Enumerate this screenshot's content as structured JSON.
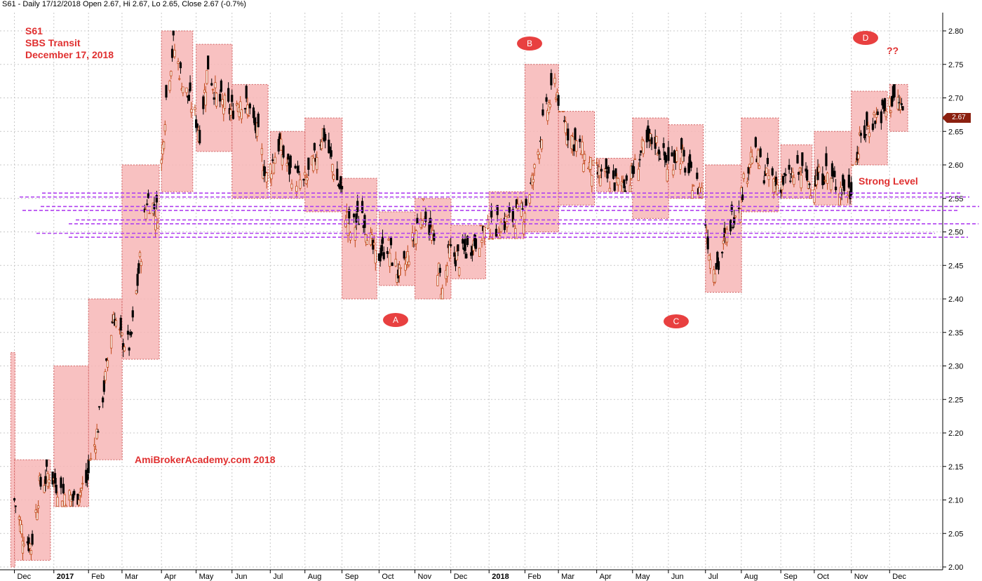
{
  "header": "S61 - Daily 17/12/2018 Open 2.67, Hi 2.67, Lo 2.65, Close 2.67 (-0.7%)",
  "symbol": "S61",
  "name": "SBS Transit",
  "date": "December 17, 2018",
  "watermark": "AmiBrokerAcademy.com  2018",
  "strong_level_label": "Strong Level",
  "question": "??",
  "markers": [
    "A",
    "B",
    "C",
    "D"
  ],
  "last_price_label": "2.67",
  "colors": {
    "box_fill": "#f7b6b6",
    "box_border": "#d06060",
    "support_line": "#b040f0",
    "annotation": "#e03030",
    "up_candle": "#c04818",
    "down_candle": "#000000",
    "grid": "#c8c8c8"
  },
  "chart_data": {
    "type": "candlestick",
    "y_axis_side": "right",
    "ylim": [
      2.0,
      2.8
    ],
    "y_ticks": [
      "2.00",
      "2.05",
      "2.10",
      "2.15",
      "2.20",
      "2.25",
      "2.30",
      "2.35",
      "2.40",
      "2.45",
      "2.50",
      "2.55",
      "2.60",
      "2.65",
      "2.70",
      "2.75",
      "2.80"
    ],
    "x_ticks": [
      "Dec",
      "2017",
      "Feb",
      "Mar",
      "Apr",
      "May",
      "Jun",
      "Jul",
      "Aug",
      "Sep",
      "Oct",
      "Nov",
      "Dec",
      "2018",
      "Feb",
      "Mar",
      "Apr",
      "May",
      "Jun",
      "Jul",
      "Aug",
      "Sep",
      "Oct",
      "Nov",
      "Dec"
    ],
    "x_range": [
      "2016-12-01",
      "2018-12-31"
    ],
    "grid": true,
    "monthly_ranges": [
      {
        "start": "2016-11-28",
        "end": "2016-11-30",
        "low": 2.0,
        "high": 2.32
      },
      {
        "start": "2016-12-01",
        "end": "2016-12-30",
        "low": 2.01,
        "high": 2.16
      },
      {
        "start": "2017-01-03",
        "end": "2017-01-31",
        "low": 2.09,
        "high": 2.3
      },
      {
        "start": "2017-02-01",
        "end": "2017-02-28",
        "low": 2.16,
        "high": 2.4
      },
      {
        "start": "2017-03-01",
        "end": "2017-03-31",
        "low": 2.31,
        "high": 2.6
      },
      {
        "start": "2017-04-03",
        "end": "2017-04-28",
        "low": 2.56,
        "high": 2.8
      },
      {
        "start": "2017-05-02",
        "end": "2017-05-31",
        "low": 2.62,
        "high": 2.78
      },
      {
        "start": "2017-06-01",
        "end": "2017-06-30",
        "low": 2.55,
        "high": 2.72
      },
      {
        "start": "2017-07-03",
        "end": "2017-07-31",
        "low": 2.55,
        "high": 2.65
      },
      {
        "start": "2017-08-01",
        "end": "2017-08-31",
        "low": 2.53,
        "high": 2.67
      },
      {
        "start": "2017-09-01",
        "end": "2017-09-29",
        "low": 2.4,
        "high": 2.58
      },
      {
        "start": "2017-10-02",
        "end": "2017-10-31",
        "low": 2.42,
        "high": 2.53
      },
      {
        "start": "2017-11-01",
        "end": "2017-11-30",
        "low": 2.4,
        "high": 2.55
      },
      {
        "start": "2017-12-01",
        "end": "2017-12-29",
        "low": 2.43,
        "high": 2.51
      },
      {
        "start": "2018-01-02",
        "end": "2018-01-31",
        "low": 2.49,
        "high": 2.56
      },
      {
        "start": "2018-02-01",
        "end": "2018-02-28",
        "low": 2.5,
        "high": 2.75
      },
      {
        "start": "2018-03-01",
        "end": "2018-03-30",
        "low": 2.54,
        "high": 2.68
      },
      {
        "start": "2018-04-02",
        "end": "2018-04-30",
        "low": 2.56,
        "high": 2.61
      },
      {
        "start": "2018-05-02",
        "end": "2018-05-31",
        "low": 2.52,
        "high": 2.67
      },
      {
        "start": "2018-06-01",
        "end": "2018-06-29",
        "low": 2.55,
        "high": 2.66
      },
      {
        "start": "2018-07-02",
        "end": "2018-07-31",
        "low": 2.41,
        "high": 2.6
      },
      {
        "start": "2018-08-01",
        "end": "2018-08-31",
        "low": 2.53,
        "high": 2.67
      },
      {
        "start": "2018-09-03",
        "end": "2018-09-28",
        "low": 2.55,
        "high": 2.63
      },
      {
        "start": "2018-10-01",
        "end": "2018-10-31",
        "low": 2.54,
        "high": 2.65
      },
      {
        "start": "2018-11-01",
        "end": "2018-11-30",
        "low": 2.6,
        "high": 2.71
      },
      {
        "start": "2018-12-03",
        "end": "2018-12-17",
        "low": 2.65,
        "high": 2.72
      }
    ],
    "support_levels": [
      2.49,
      2.5,
      2.51,
      2.52,
      2.53,
      2.54,
      2.55,
      2.56
    ],
    "marker_points": [
      {
        "label": "A",
        "date": "2017-11-08",
        "price": 2.37
      },
      {
        "label": "B",
        "date": "2018-02-26",
        "price": 2.79
      },
      {
        "label": "C",
        "date": "2018-07-10",
        "price": 2.37
      },
      {
        "label": "D",
        "date": "2018-12-20",
        "price": 2.8
      }
    ],
    "price_path": [
      [
        "2016-12-01",
        2.1
      ],
      [
        "2016-12-08",
        2.05
      ],
      [
        "2016-12-15",
        2.03
      ],
      [
        "2016-12-22",
        2.12
      ],
      [
        "2016-12-30",
        2.14
      ],
      [
        "2017-01-10",
        2.11
      ],
      [
        "2017-01-20",
        2.1
      ],
      [
        "2017-01-31",
        2.13
      ],
      [
        "2017-02-08",
        2.2
      ],
      [
        "2017-02-15",
        2.28
      ],
      [
        "2017-02-22",
        2.38
      ],
      [
        "2017-02-28",
        2.34
      ],
      [
        "2017-03-08",
        2.33
      ],
      [
        "2017-03-15",
        2.44
      ],
      [
        "2017-03-22",
        2.55
      ],
      [
        "2017-03-31",
        2.53
      ],
      [
        "2017-04-07",
        2.7
      ],
      [
        "2017-04-13",
        2.78
      ],
      [
        "2017-04-21",
        2.72
      ],
      [
        "2017-04-28",
        2.69
      ],
      [
        "2017-05-05",
        2.65
      ],
      [
        "2017-05-12",
        2.75
      ],
      [
        "2017-05-19",
        2.7
      ],
      [
        "2017-05-31",
        2.68
      ],
      [
        "2017-06-08",
        2.7
      ],
      [
        "2017-06-16",
        2.68
      ],
      [
        "2017-06-23",
        2.64
      ],
      [
        "2017-06-30",
        2.58
      ],
      [
        "2017-07-10",
        2.63
      ],
      [
        "2017-07-20",
        2.59
      ],
      [
        "2017-07-31",
        2.57
      ],
      [
        "2017-08-08",
        2.6
      ],
      [
        "2017-08-16",
        2.65
      ],
      [
        "2017-08-24",
        2.6
      ],
      [
        "2017-08-31",
        2.56
      ],
      [
        "2017-09-08",
        2.5
      ],
      [
        "2017-09-18",
        2.53
      ],
      [
        "2017-09-29",
        2.46
      ],
      [
        "2017-10-09",
        2.48
      ],
      [
        "2017-10-20",
        2.43
      ],
      [
        "2017-10-31",
        2.49
      ],
      [
        "2017-11-08",
        2.54
      ],
      [
        "2017-11-17",
        2.48
      ],
      [
        "2017-11-24",
        2.41
      ],
      [
        "2017-11-30",
        2.47
      ],
      [
        "2017-12-08",
        2.46
      ],
      [
        "2017-12-18",
        2.48
      ],
      [
        "2017-12-29",
        2.5
      ],
      [
        "2018-01-10",
        2.51
      ],
      [
        "2018-01-22",
        2.52
      ],
      [
        "2018-01-31",
        2.53
      ],
      [
        "2018-02-08",
        2.58
      ],
      [
        "2018-02-16",
        2.66
      ],
      [
        "2018-02-26",
        2.72
      ],
      [
        "2018-03-09",
        2.65
      ],
      [
        "2018-03-20",
        2.62
      ],
      [
        "2018-03-30",
        2.59
      ],
      [
        "2018-04-10",
        2.58
      ],
      [
        "2018-04-20",
        2.57
      ],
      [
        "2018-04-30",
        2.58
      ],
      [
        "2018-05-10",
        2.62
      ],
      [
        "2018-05-20",
        2.64
      ],
      [
        "2018-05-31",
        2.6
      ],
      [
        "2018-06-10",
        2.62
      ],
      [
        "2018-06-20",
        2.58
      ],
      [
        "2018-06-29",
        2.56
      ],
      [
        "2018-07-06",
        2.46
      ],
      [
        "2018-07-13",
        2.45
      ],
      [
        "2018-07-24",
        2.52
      ],
      [
        "2018-07-31",
        2.55
      ],
      [
        "2018-08-10",
        2.62
      ],
      [
        "2018-08-20",
        2.59
      ],
      [
        "2018-08-31",
        2.57
      ],
      [
        "2018-09-10",
        2.58
      ],
      [
        "2018-09-20",
        2.59
      ],
      [
        "2018-09-28",
        2.57
      ],
      [
        "2018-10-10",
        2.59
      ],
      [
        "2018-10-20",
        2.57
      ],
      [
        "2018-10-31",
        2.56
      ],
      [
        "2018-11-09",
        2.64
      ],
      [
        "2018-11-20",
        2.67
      ],
      [
        "2018-11-30",
        2.68
      ],
      [
        "2018-12-06",
        2.7
      ],
      [
        "2018-12-12",
        2.69
      ],
      [
        "2018-12-17",
        2.67
      ]
    ],
    "last_close": 2.67
  }
}
